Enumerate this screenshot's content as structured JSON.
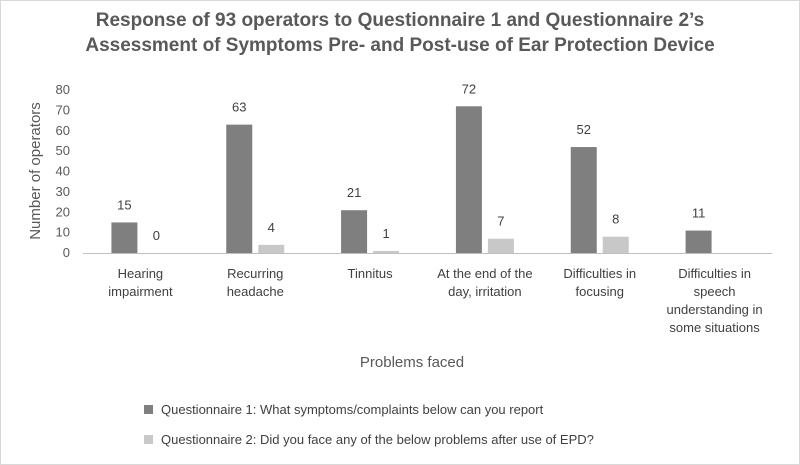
{
  "chart_data": {
    "type": "bar",
    "title_lines": [
      "Response of 93 operators to Questionnaire 1 and Questionnaire 2’s",
      "Assessment of Symptoms Pre- and Post-use of Ear Protection Device"
    ],
    "categories": [
      [
        "Hearing",
        "impairment"
      ],
      [
        "Recurring",
        "headache"
      ],
      [
        "Tinnitus"
      ],
      [
        "At the end of the",
        "day, irritation"
      ],
      [
        "Difficulties in",
        "focusing"
      ],
      [
        "Difficulties in",
        "speech",
        "understanding in",
        "some situations"
      ]
    ],
    "series": [
      {
        "name": "Questionnaire 1: What symptoms/complaints below can you report",
        "color": "#7f7f7f",
        "values": [
          15,
          63,
          21,
          72,
          52,
          11
        ],
        "labels": [
          "15",
          "63",
          "21",
          "72",
          "52",
          "11"
        ]
      },
      {
        "name": "Questionnaire 2: Did you face any of the below problems after use of EPD?",
        "color": "#c8c8c8",
        "values": [
          0,
          4,
          1,
          7,
          8,
          null
        ],
        "labels": [
          "0",
          "4",
          "1",
          "7",
          "8",
          null
        ]
      }
    ],
    "xlabel": "Problems faced",
    "ylabel": "Number of operators",
    "ylim": [
      0,
      80
    ],
    "yticks": [
      0,
      10,
      20,
      30,
      40,
      50,
      60,
      70,
      80
    ],
    "grid": false,
    "legend_position": "bottom"
  }
}
